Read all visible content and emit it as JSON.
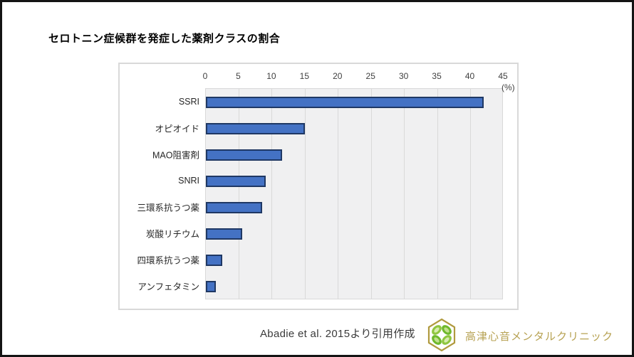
{
  "page": {
    "title": "セロトニン症候群を発症した薬剤クラスの割合",
    "footer": {
      "citation": "Abadie et al. 2015より引用作成",
      "clinic_name": "高津心音メンタルクリニック",
      "logo": "hexagon-clover-logo"
    }
  },
  "chart_data": {
    "type": "bar",
    "orientation": "horizontal",
    "title": "セロトニン症候群を発症した薬剤クラスの割合",
    "categories": [
      "SSRI",
      "オピオイド",
      "MAO阻害剤",
      "SNRI",
      "三環系抗うつ薬",
      "炭酸リチウム",
      "四環系抗うつ薬",
      "アンフェタミン"
    ],
    "values": [
      42,
      15,
      11.5,
      9,
      8.5,
      5.5,
      2.5,
      1.5
    ],
    "xlim": [
      0,
      45
    ],
    "xticks": [
      0,
      5,
      10,
      15,
      20,
      25,
      30,
      35,
      40,
      45
    ],
    "x_unit_label": "(%)",
    "grid": "vertical",
    "legend": "none",
    "bar_color": "#4472c4",
    "bar_border_color": "#1f3864",
    "plot_bg": "#f0f0f1",
    "gridline_color": "#d9d9d9"
  }
}
